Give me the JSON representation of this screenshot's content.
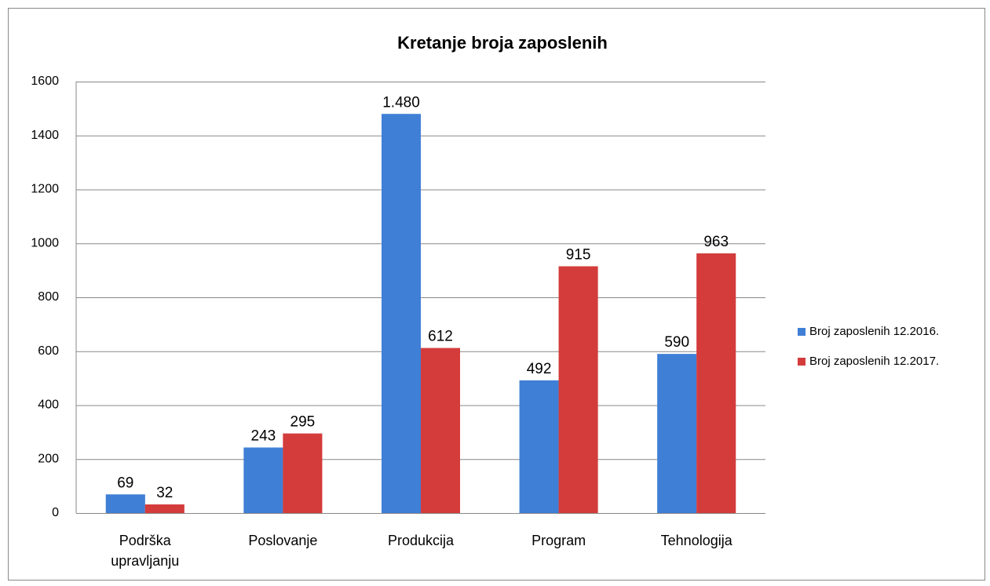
{
  "chart_data": {
    "type": "bar",
    "title": "Kretanje broja zaposlenih",
    "categories": [
      "Podrška upravljanju",
      "Poslovanje",
      "Produkcija",
      "Program",
      "Tehnologija"
    ],
    "series": [
      {
        "name": "Broj zaposlenih 12.2016.",
        "color": "#3f7fd6",
        "values": [
          69,
          243,
          1480,
          492,
          590
        ],
        "value_labels": [
          "69",
          "243",
          "1.480",
          "492",
          "590"
        ]
      },
      {
        "name": "Broj zaposlenih 12.2017.",
        "color": "#d43c3c",
        "values": [
          32,
          295,
          612,
          915,
          963
        ]
      }
    ],
    "ylim": [
      0,
      1600
    ],
    "yticks": [
      0,
      200,
      400,
      600,
      800,
      1000,
      1200,
      1400,
      1600
    ],
    "grid": true,
    "legend": "right"
  }
}
